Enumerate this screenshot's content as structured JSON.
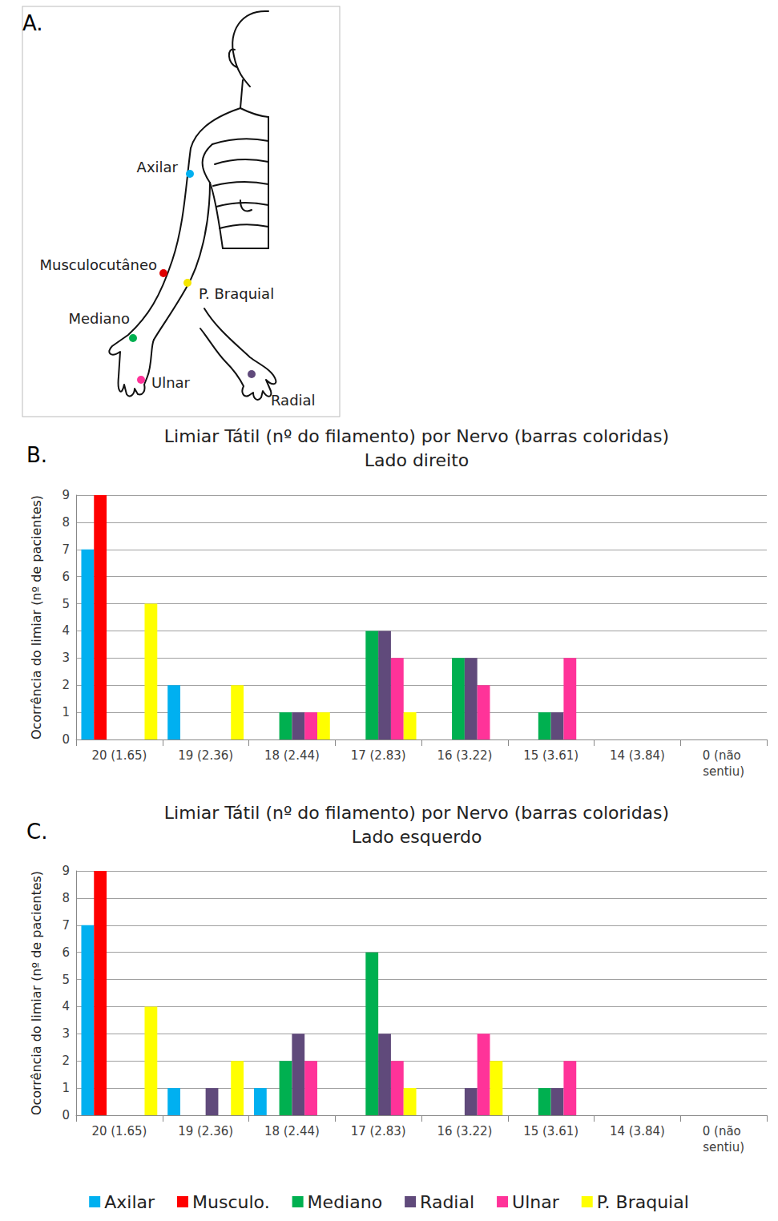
{
  "diagram": {
    "panel": "A.",
    "nerves": [
      {
        "label": "Axilar",
        "color": "#00B0F0"
      },
      {
        "label": "Musculocutâneo",
        "color": "#E00000"
      },
      {
        "label": "P. Braquial",
        "color": "#F5E600"
      },
      {
        "label": "Mediano",
        "color": "#00B050"
      },
      {
        "label": "Ulnar",
        "color": "#FF3399"
      },
      {
        "label": "Radial",
        "color": "#604A7B"
      }
    ]
  },
  "chart_data": [
    {
      "panel": "B.",
      "type": "bar",
      "title": "Limiar Tátil (nº do filamento) por Nervo (barras coloridas)",
      "subtitle": "Lado direito",
      "y_label": "Ocorrência do limiar (nº de pacientes)",
      "categories": [
        "20 (1.65)",
        "19 (2.36)",
        "18 (2.44)",
        "17 (2.83)",
        "16 (3.22)",
        "15 (3.61)",
        "14 (3.84)",
        "0 (não sentiu)"
      ],
      "series": [
        {
          "name": "Axilar",
          "color": "#00B0F0",
          "values": [
            7,
            2,
            0,
            0,
            0,
            0,
            0,
            0
          ]
        },
        {
          "name": "Musculo.",
          "color": "#FF0000",
          "values": [
            9,
            0,
            0,
            0,
            0,
            0,
            0,
            0
          ]
        },
        {
          "name": "Mediano",
          "color": "#00B050",
          "values": [
            0,
            0,
            1,
            4,
            3,
            1,
            0,
            0
          ]
        },
        {
          "name": "Radial",
          "color": "#604A7B",
          "values": [
            0,
            0,
            1,
            4,
            3,
            1,
            0,
            0
          ]
        },
        {
          "name": "Ulnar",
          "color": "#FF3399",
          "values": [
            0,
            0,
            1,
            3,
            2,
            3,
            0,
            0
          ]
        },
        {
          "name": "P. Braquial",
          "color": "#FFFF00",
          "values": [
            5,
            2,
            1,
            1,
            0,
            0,
            0,
            0
          ]
        }
      ],
      "ylim": [
        0,
        9
      ],
      "yticks": [
        0,
        1,
        2,
        3,
        4,
        5,
        6,
        7,
        8,
        9
      ],
      "grid": true
    },
    {
      "panel": "C.",
      "type": "bar",
      "title": "Limiar Tátil (nº do filamento) por Nervo (barras coloridas)",
      "subtitle": "Lado esquerdo",
      "y_label": "Ocorrência do limiar (nº de pacientes)",
      "categories": [
        "20 (1.65)",
        "19 (2.36)",
        "18 (2.44)",
        "17 (2.83)",
        "16 (3.22)",
        "15 (3.61)",
        "14 (3.84)",
        "0 (não sentiu)"
      ],
      "series": [
        {
          "name": "Axilar",
          "color": "#00B0F0",
          "values": [
            7,
            1,
            1,
            0,
            0,
            0,
            0,
            0
          ]
        },
        {
          "name": "Musculo.",
          "color": "#FF0000",
          "values": [
            9,
            0,
            0,
            0,
            0,
            0,
            0,
            0
          ]
        },
        {
          "name": "Mediano",
          "color": "#00B050",
          "values": [
            0,
            0,
            2,
            6,
            0,
            1,
            0,
            0
          ]
        },
        {
          "name": "Radial",
          "color": "#604A7B",
          "values": [
            0,
            1,
            3,
            3,
            1,
            1,
            0,
            0
          ]
        },
        {
          "name": "Ulnar",
          "color": "#FF3399",
          "values": [
            0,
            0,
            2,
            2,
            3,
            2,
            0,
            0
          ]
        },
        {
          "name": "P. Braquial",
          "color": "#FFFF00",
          "values": [
            4,
            2,
            0,
            1,
            2,
            0,
            0,
            0
          ]
        }
      ],
      "ylim": [
        0,
        9
      ],
      "yticks": [
        0,
        1,
        2,
        3,
        4,
        5,
        6,
        7,
        8,
        9
      ],
      "grid": true,
      "legend": "bottom"
    }
  ]
}
